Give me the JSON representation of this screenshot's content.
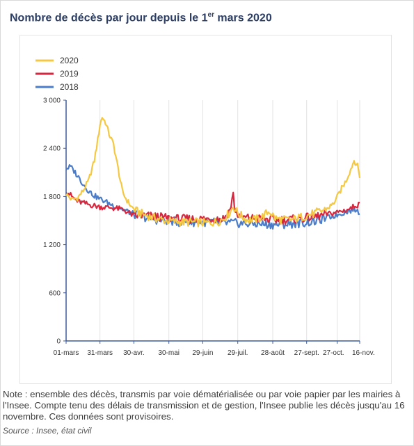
{
  "title": {
    "main": "Nombre de décès par jour depuis le 1",
    "superscript": "er",
    "tail": " mars 2020"
  },
  "note": "Note : ensemble des décès, transmis par voie dématérialisée ou par voie papier par les mairies à l'Insee. Compte tenu des délais de transmission et de gestion, l'Insee publie les décès jusqu'au 16 novembre. Ces données sont provisoires.",
  "source": "Source : Insee, état civil",
  "chart_data": {
    "type": "line",
    "title": "Nombre de décès par jour depuis le 1er mars 2020",
    "xlabel": "",
    "ylabel": "",
    "ylim": [
      0,
      3000
    ],
    "yticks": [
      0,
      600,
      1200,
      1800,
      2400,
      3000
    ],
    "ytick_labels": [
      "0",
      "600",
      "1 200",
      "1 800",
      "2 400",
      "3 000"
    ],
    "x_day_range": [
      0,
      260
    ],
    "xticks": [
      0,
      30,
      60,
      91,
      121,
      152,
      183,
      213,
      240,
      260
    ],
    "xtick_labels": [
      "01-mars",
      "31-mars",
      "30-avr.",
      "30-mai",
      "29-juin",
      "29-juil.",
      "28-août",
      "27-sept.",
      "27-oct.",
      "16-nov."
    ],
    "grid": "vertical",
    "legend_position": "top-left",
    "series": [
      {
        "name": "2020",
        "color": "#f5c842",
        "values": [
          [
            0,
            1830
          ],
          [
            5,
            1760
          ],
          [
            10,
            1780
          ],
          [
            15,
            1870
          ],
          [
            20,
            2000
          ],
          [
            25,
            2250
          ],
          [
            28,
            2500
          ],
          [
            30,
            2700
          ],
          [
            32,
            2790
          ],
          [
            35,
            2720
          ],
          [
            38,
            2580
          ],
          [
            42,
            2450
          ],
          [
            46,
            2150
          ],
          [
            50,
            1850
          ],
          [
            54,
            1750
          ],
          [
            58,
            1670
          ],
          [
            62,
            1620
          ],
          [
            66,
            1590
          ],
          [
            70,
            1570
          ],
          [
            76,
            1540
          ],
          [
            82,
            1520
          ],
          [
            88,
            1500
          ],
          [
            95,
            1490
          ],
          [
            105,
            1480
          ],
          [
            115,
            1480
          ],
          [
            125,
            1470
          ],
          [
            135,
            1490
          ],
          [
            140,
            1530
          ],
          [
            145,
            1600
          ],
          [
            148,
            1680
          ],
          [
            151,
            1610
          ],
          [
            155,
            1560
          ],
          [
            160,
            1510
          ],
          [
            165,
            1510
          ],
          [
            170,
            1520
          ],
          [
            175,
            1560
          ],
          [
            180,
            1620
          ],
          [
            185,
            1530
          ],
          [
            190,
            1510
          ],
          [
            200,
            1510
          ],
          [
            210,
            1550
          ],
          [
            220,
            1590
          ],
          [
            230,
            1640
          ],
          [
            236,
            1700
          ],
          [
            240,
            1790
          ],
          [
            244,
            1900
          ],
          [
            248,
            2000
          ],
          [
            252,
            2140
          ],
          [
            255,
            2250
          ],
          [
            258,
            2180
          ],
          [
            260,
            2050
          ]
        ]
      },
      {
        "name": "2019",
        "color": "#d7263d",
        "values": [
          [
            0,
            1880
          ],
          [
            5,
            1800
          ],
          [
            10,
            1740
          ],
          [
            20,
            1700
          ],
          [
            30,
            1670
          ],
          [
            40,
            1660
          ],
          [
            50,
            1640
          ],
          [
            55,
            1600
          ],
          [
            60,
            1560
          ],
          [
            70,
            1560
          ],
          [
            80,
            1550
          ],
          [
            90,
            1530
          ],
          [
            100,
            1520
          ],
          [
            110,
            1520
          ],
          [
            120,
            1520
          ],
          [
            130,
            1520
          ],
          [
            140,
            1530
          ],
          [
            145,
            1630
          ],
          [
            148,
            1820
          ],
          [
            150,
            1600
          ],
          [
            155,
            1540
          ],
          [
            165,
            1530
          ],
          [
            175,
            1520
          ],
          [
            185,
            1510
          ],
          [
            195,
            1510
          ],
          [
            205,
            1520
          ],
          [
            215,
            1540
          ],
          [
            225,
            1560
          ],
          [
            235,
            1590
          ],
          [
            245,
            1620
          ],
          [
            252,
            1650
          ],
          [
            256,
            1690
          ],
          [
            260,
            1700
          ]
        ]
      },
      {
        "name": "2018",
        "color": "#4a7cc9",
        "values": [
          [
            0,
            2150
          ],
          [
            4,
            2170
          ],
          [
            8,
            2100
          ],
          [
            12,
            2020
          ],
          [
            16,
            1940
          ],
          [
            20,
            1870
          ],
          [
            25,
            1810
          ],
          [
            30,
            1770
          ],
          [
            40,
            1700
          ],
          [
            50,
            1640
          ],
          [
            60,
            1580
          ],
          [
            70,
            1540
          ],
          [
            80,
            1510
          ],
          [
            90,
            1500
          ],
          [
            100,
            1480
          ],
          [
            110,
            1480
          ],
          [
            120,
            1480
          ],
          [
            130,
            1480
          ],
          [
            140,
            1470
          ],
          [
            150,
            1470
          ],
          [
            160,
            1460
          ],
          [
            170,
            1460
          ],
          [
            180,
            1450
          ],
          [
            190,
            1450
          ],
          [
            200,
            1460
          ],
          [
            210,
            1470
          ],
          [
            220,
            1490
          ],
          [
            230,
            1530
          ],
          [
            240,
            1570
          ],
          [
            250,
            1620
          ],
          [
            255,
            1640
          ],
          [
            260,
            1600
          ]
        ]
      }
    ]
  }
}
